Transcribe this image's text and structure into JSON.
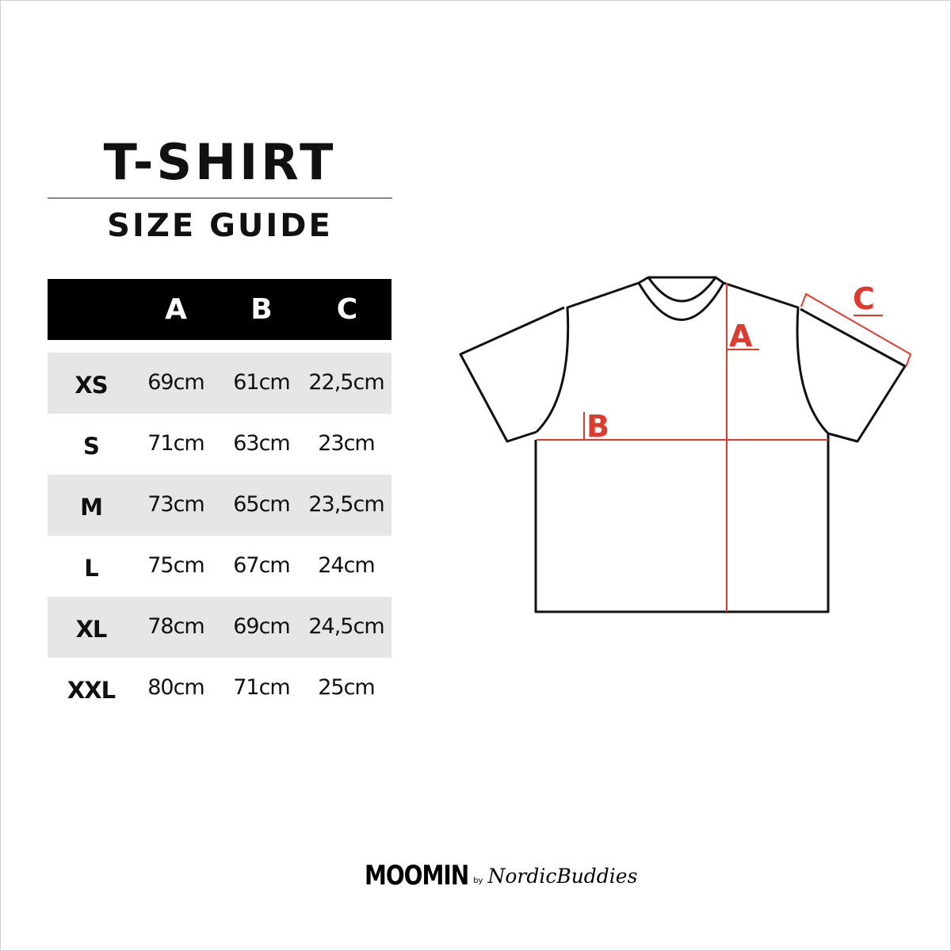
{
  "title": "T-SHIRT",
  "subtitle": "SIZE GUIDE",
  "table": {
    "headers": [
      "",
      "A",
      "B",
      "C"
    ],
    "rows": [
      {
        "size": "XS",
        "a": "69cm",
        "b": "61cm",
        "c": "22,5cm"
      },
      {
        "size": "S",
        "a": "71cm",
        "b": "63cm",
        "c": "23cm"
      },
      {
        "size": "M",
        "a": "73cm",
        "b": "65cm",
        "c": "23,5cm"
      },
      {
        "size": "L",
        "a": "75cm",
        "b": "67cm",
        "c": "24cm"
      },
      {
        "size": "XL",
        "a": "78cm",
        "b": "69cm",
        "c": "24,5cm"
      },
      {
        "size": "XXL",
        "a": "80cm",
        "b": "71cm",
        "c": "25cm"
      }
    ]
  },
  "diagram": {
    "label_a": "A",
    "label_b": "B",
    "label_c": "C",
    "accent_color": "#e03a2e"
  },
  "logo": {
    "brand": "MOOMIN",
    "by": "by",
    "partner": "NordicBuddies"
  }
}
